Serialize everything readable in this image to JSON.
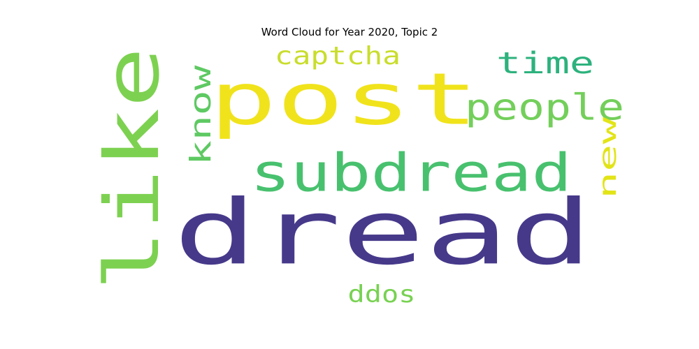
{
  "chart_data": {
    "type": "wordcloud",
    "title": "Word Cloud for Year 2020, Topic 2",
    "words": [
      {
        "text": "dread",
        "color": "#46398a"
      },
      {
        "text": "post",
        "color": "#f0e31b"
      },
      {
        "text": "like",
        "color": "#7dd151"
      },
      {
        "text": "subdread",
        "color": "#48c16e"
      },
      {
        "text": "people",
        "color": "#73cf5a"
      },
      {
        "text": "time",
        "color": "#2db27d"
      },
      {
        "text": "know",
        "color": "#5ec962"
      },
      {
        "text": "captcha",
        "color": "#c9dd2c"
      },
      {
        "text": "new",
        "color": "#e2e418"
      },
      {
        "text": "ddos",
        "color": "#78d152"
      }
    ]
  }
}
